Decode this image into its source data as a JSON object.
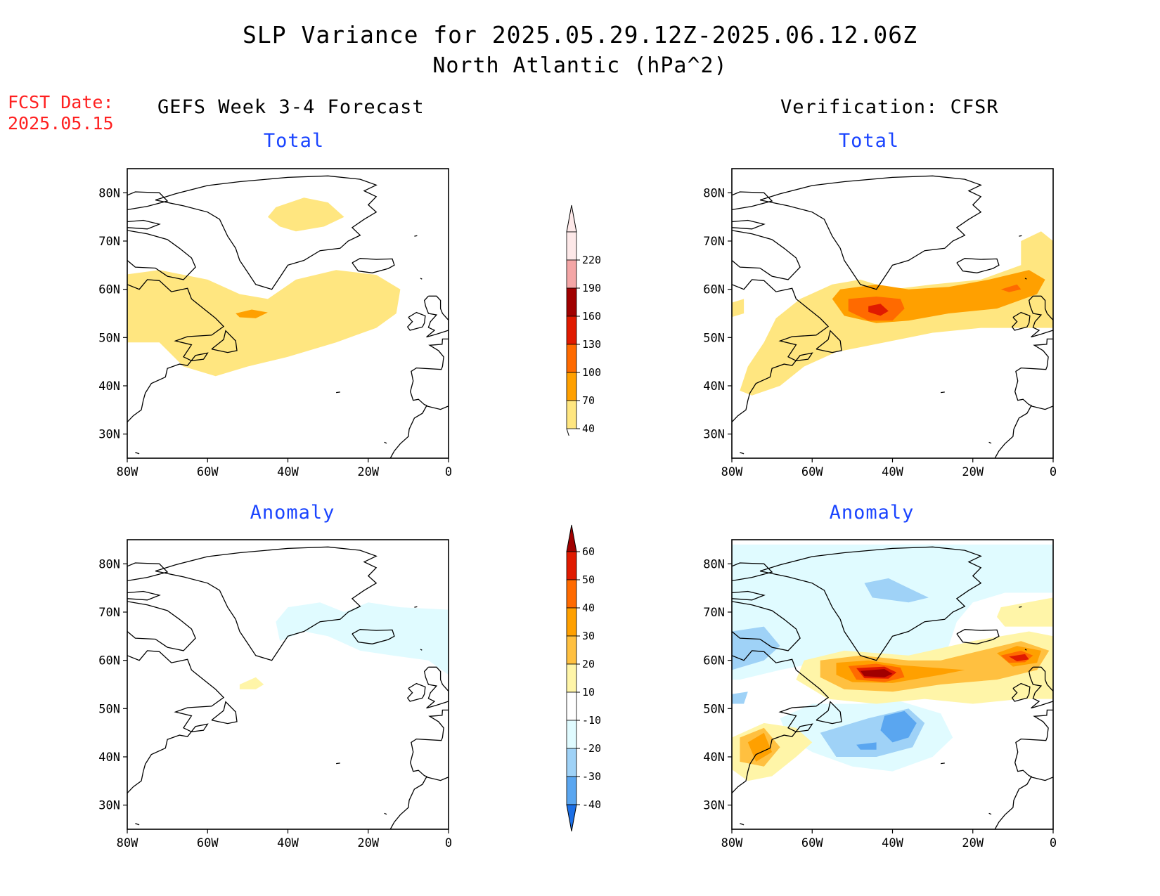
{
  "header": {
    "title_line1": "SLP Variance for 2025.05.29.12Z-2025.06.12.06Z",
    "title_line2": "North Atlantic (hPa^2)",
    "fcst_label": "FCST Date:",
    "fcst_date": "2025.05.15"
  },
  "columns": {
    "left_title": "GEFS Week 3-4 Forecast",
    "right_title": "Verification: CFSR"
  },
  "panels": {
    "total_label": "Total",
    "anomaly_label": "Anomaly"
  },
  "axes": {
    "lat_labels": [
      "80N",
      "70N",
      "60N",
      "50N",
      "40N",
      "30N"
    ],
    "lon_labels": [
      "80W",
      "60W",
      "40W",
      "20W",
      "0"
    ]
  },
  "colorbars": {
    "total": {
      "levels": [
        "220",
        "190",
        "160",
        "130",
        "100",
        "70",
        "40"
      ],
      "colors": [
        "#fde8e8",
        "#f4a6a6",
        "#a00000",
        "#e01a00",
        "#ff6a00",
        "#ffa000",
        "#ffe680"
      ]
    },
    "anomaly": {
      "levels": [
        "60",
        "50",
        "40",
        "30",
        "20",
        "10",
        "-10",
        "-20",
        "-30",
        "-40"
      ],
      "colors": [
        "#a00000",
        "#e01a00",
        "#ff6a00",
        "#ffa000",
        "#ffc040",
        "#fff5a8",
        "#ffffff",
        "#e0fbff",
        "#9fd2f7",
        "#5aa6f0",
        "#1c6fe6"
      ]
    }
  },
  "map_colors": {
    "lev40": "#ffe680",
    "lev70": "#ffa000",
    "lev100": "#ff6a00",
    "lev130": "#e01a00",
    "a10": "#fff5a8",
    "a20": "#ffc040",
    "a30": "#ffa000",
    "a40": "#ff6a00",
    "a50": "#e01a00",
    "a60": "#a00000",
    "am10": "#e0fbff",
    "am20": "#9fd2f7",
    "am30": "#5aa6f0",
    "am40": "#1c6fe6"
  }
}
